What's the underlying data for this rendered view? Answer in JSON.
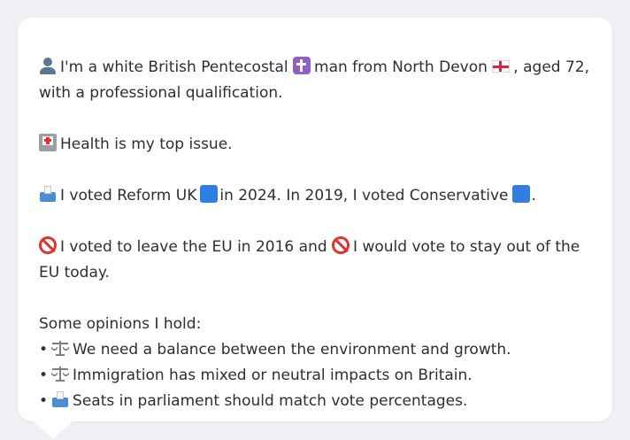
{
  "profile": {
    "line1_part1": "I'm a white British Pentecostal",
    "line1_part2": "man from North Devon",
    "line1_part3": ", aged 72, with a professional qualification.",
    "health": "Health is my top issue.",
    "vote_part1": "I voted Reform UK",
    "vote_part2": "in 2024. In 2019, I voted Conservative",
    "vote_part3": ".",
    "eu_part1": "I voted to leave the EU in 2016 and",
    "eu_part2": "I would vote to stay out of the EU today.",
    "opinions_heading": "Some opinions I hold:",
    "bullet": "•",
    "opinions": [
      {
        "icon": "scales-icon",
        "text": "We need a balance between the environment and growth."
      },
      {
        "icon": "scales-icon",
        "text": "Immigration has mixed or neutral impacts on Britain."
      },
      {
        "icon": "ballot-box-icon",
        "text": "Seats in parliament should match vote percentages."
      }
    ]
  },
  "colors": {
    "card": "#ffffff",
    "background": "#eef0f3",
    "text": "#2b2f36",
    "reform_square": "#2f7fe0",
    "conservative_square": "#2f7fe0"
  }
}
